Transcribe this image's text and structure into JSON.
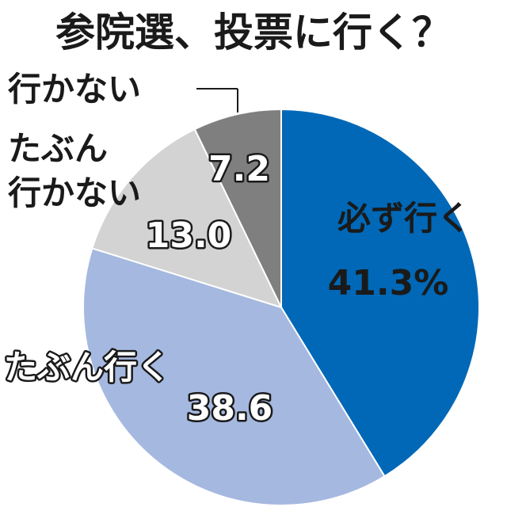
{
  "chart_data": {
    "type": "pie",
    "title": "参院選、投票に行く？",
    "slices": [
      {
        "label": "必ず行く",
        "label_lines": [
          "必ず行く"
        ],
        "value": 41.3,
        "display": "41.3%",
        "color": "#0068b7"
      },
      {
        "label": "たぶん行く",
        "label_lines": [
          "たぶん行く"
        ],
        "value": 38.6,
        "display": "38.6",
        "color": "#a5b8e0"
      },
      {
        "label": "たぶん行かない",
        "label_lines": [
          "たぶん",
          "行かない"
        ],
        "value": 13.0,
        "display": "13.0",
        "color": "#d3d3d3"
      },
      {
        "label": "行かない",
        "label_lines": [
          "行かない"
        ],
        "value": 7.2,
        "display": "7.2",
        "color": "#7f7f7f"
      }
    ]
  }
}
